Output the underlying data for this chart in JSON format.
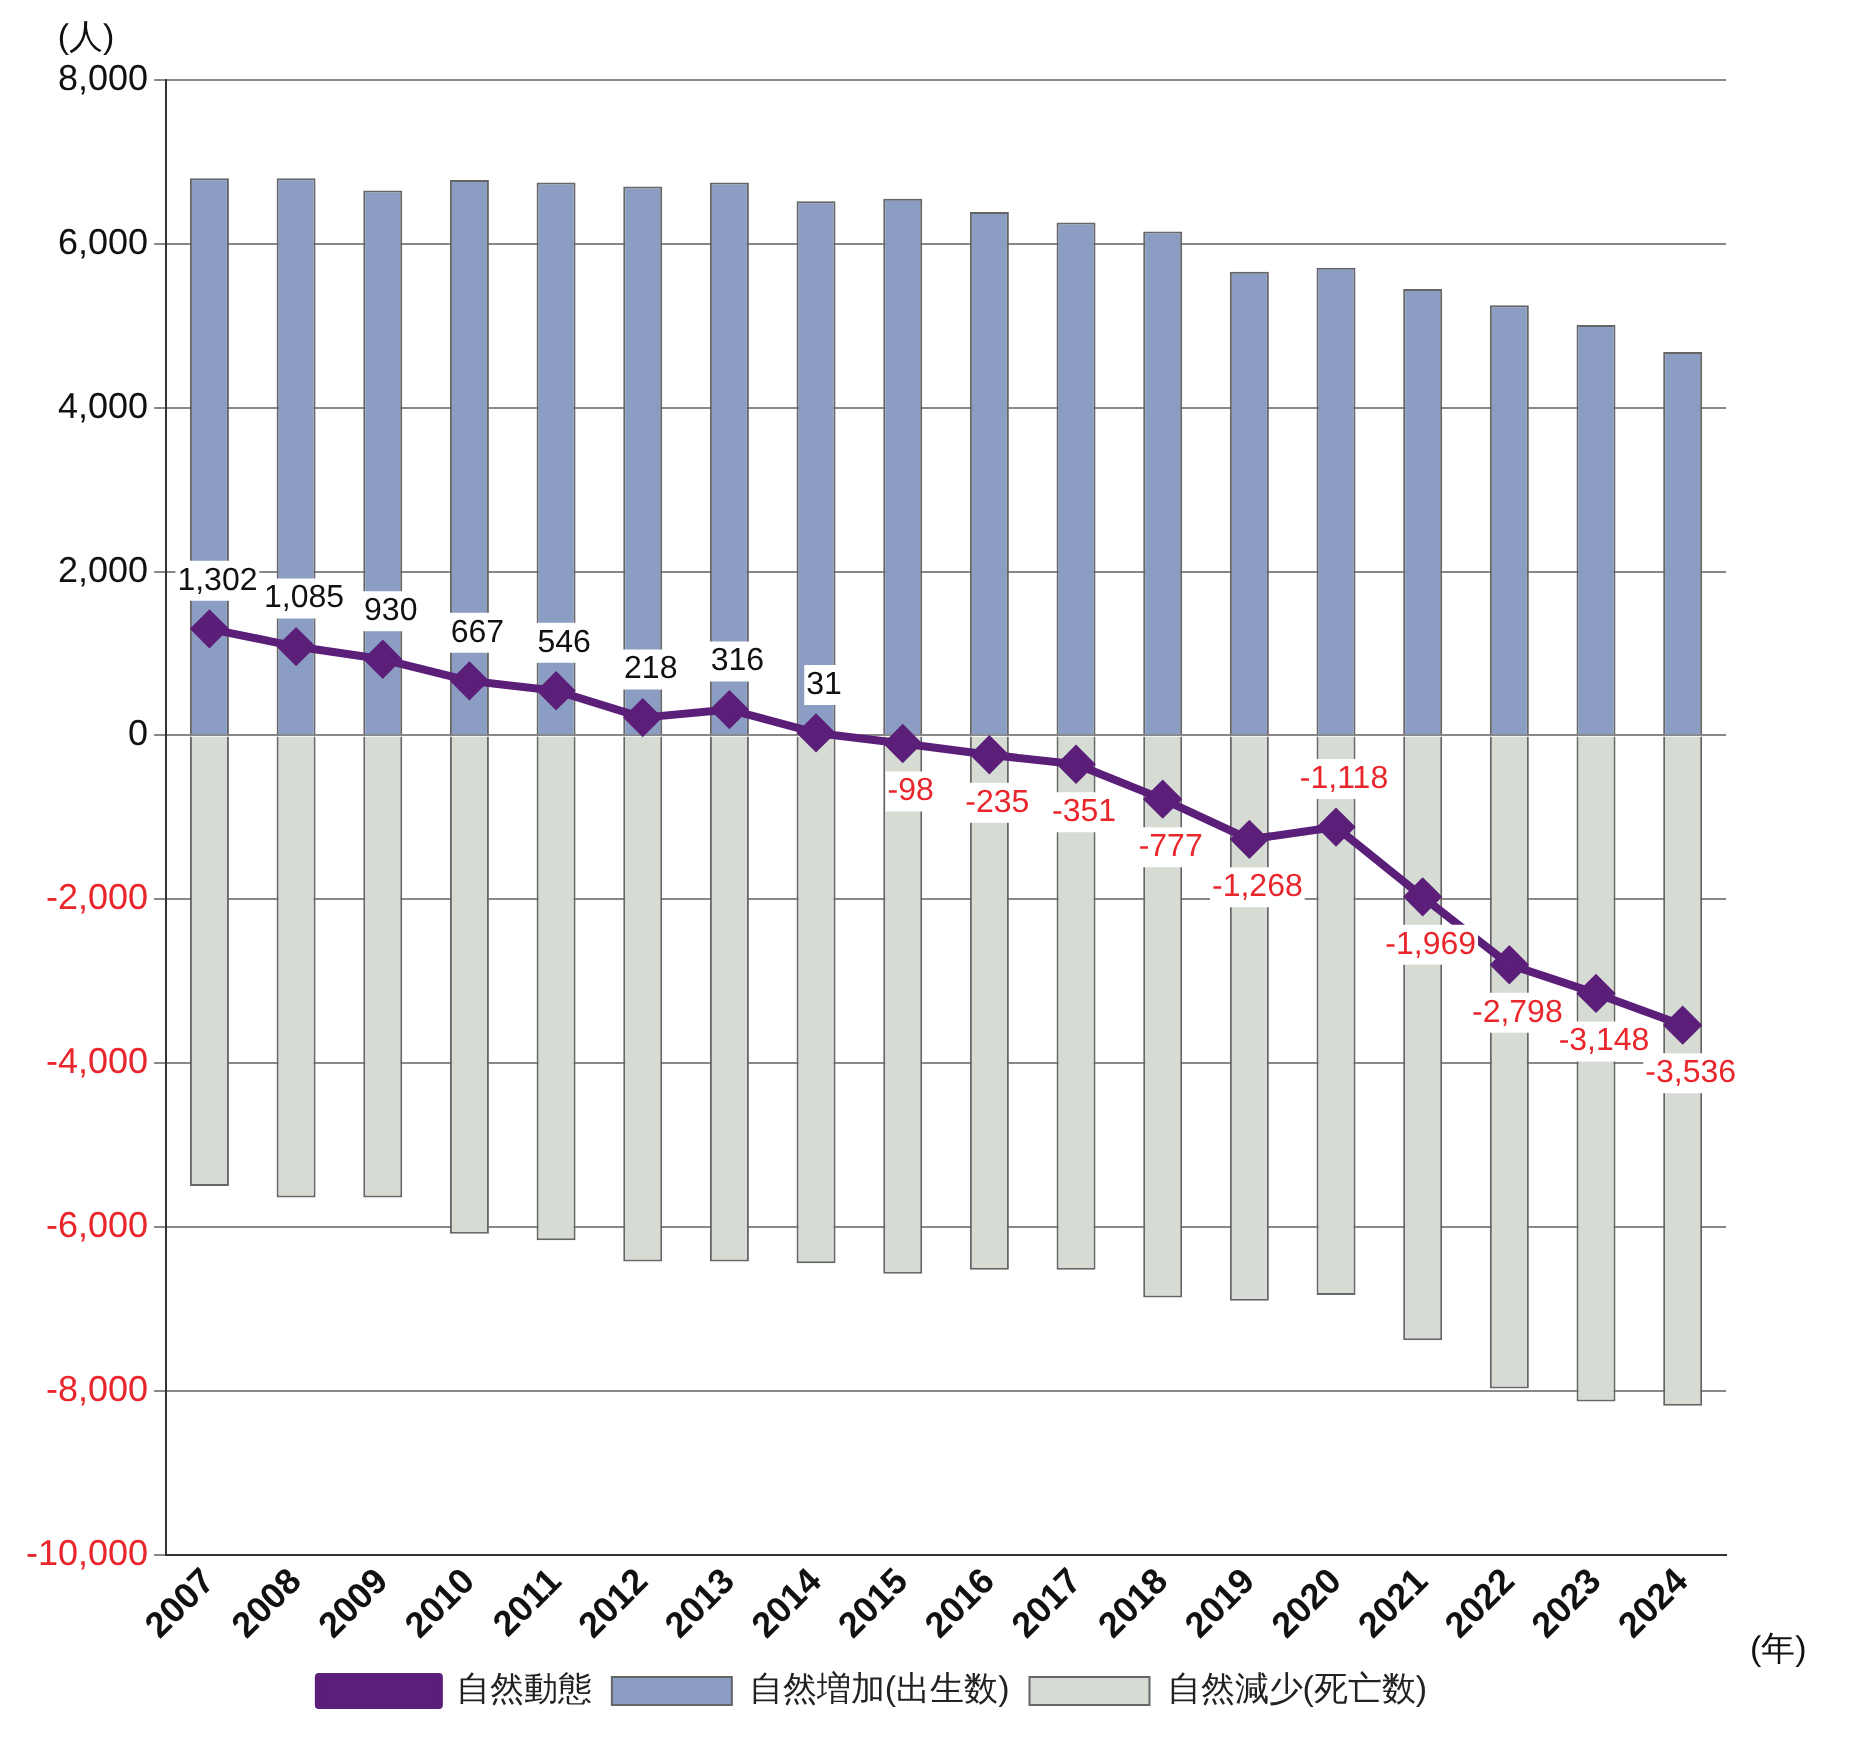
{
  "chart_data": {
    "type": "bar",
    "stacked": true,
    "ylabel": "(人)",
    "xlabel": "(年)",
    "categories": [
      "2007",
      "2008",
      "2009",
      "2010",
      "2011",
      "2012",
      "2013",
      "2014",
      "2015",
      "2016",
      "2017",
      "2018",
      "2019",
      "2020",
      "2021",
      "2022",
      "2023",
      "2024"
    ],
    "series": [
      {
        "name": "自然増加(出生数)",
        "color": "#8b9dc3",
        "values": [
          6800,
          6800,
          6650,
          6780,
          6750,
          6700,
          6750,
          6520,
          6550,
          6390,
          6260,
          6150,
          5660,
          5710,
          5450,
          5250,
          5010,
          4680
        ]
      },
      {
        "name": "自然減少(死亡数)",
        "color": "#d6dbd4",
        "values": [
          -5500,
          -5640,
          -5640,
          -6080,
          -6160,
          -6420,
          -6420,
          -6440,
          -6570,
          -6520,
          -6520,
          -6860,
          -6900,
          -6830,
          -7380,
          -7970,
          -8130,
          -8180
        ]
      },
      {
        "name": "自然動態",
        "type": "line",
        "color": "#5b1f7a",
        "marker": "diamond",
        "line_style": "solid",
        "values": [
          1302,
          1085,
          930,
          667,
          546,
          218,
          316,
          31,
          -98,
          -235,
          -351,
          -777,
          -1268,
          -1118,
          -1969,
          -2798,
          -3148,
          -3536
        ],
        "value_labels": [
          "1,302",
          "1,085",
          "930",
          "667",
          "546",
          "218",
          "316",
          "31",
          "-98",
          "-235",
          "-351",
          "-777",
          "-1,268",
          "-1,118",
          "-1,969",
          "-2,798",
          "-3,148",
          "-3,536"
        ]
      }
    ],
    "ylim": [
      -10000,
      8000
    ],
    "yticks": [
      {
        "value": -10000,
        "label": "-10,000"
      },
      {
        "value": -8000,
        "label": "-8,000"
      },
      {
        "value": -6000,
        "label": "-6,000"
      },
      {
        "value": -4000,
        "label": "-4,000"
      },
      {
        "value": -2000,
        "label": "-2,000"
      },
      {
        "value": 0,
        "label": "0"
      },
      {
        "value": 2000,
        "label": "2,000"
      },
      {
        "value": 4000,
        "label": "4,000"
      },
      {
        "value": 6000,
        "label": "6,000"
      },
      {
        "value": 8000,
        "label": "8,000"
      }
    ],
    "grid": "y",
    "legend": "bottom"
  }
}
